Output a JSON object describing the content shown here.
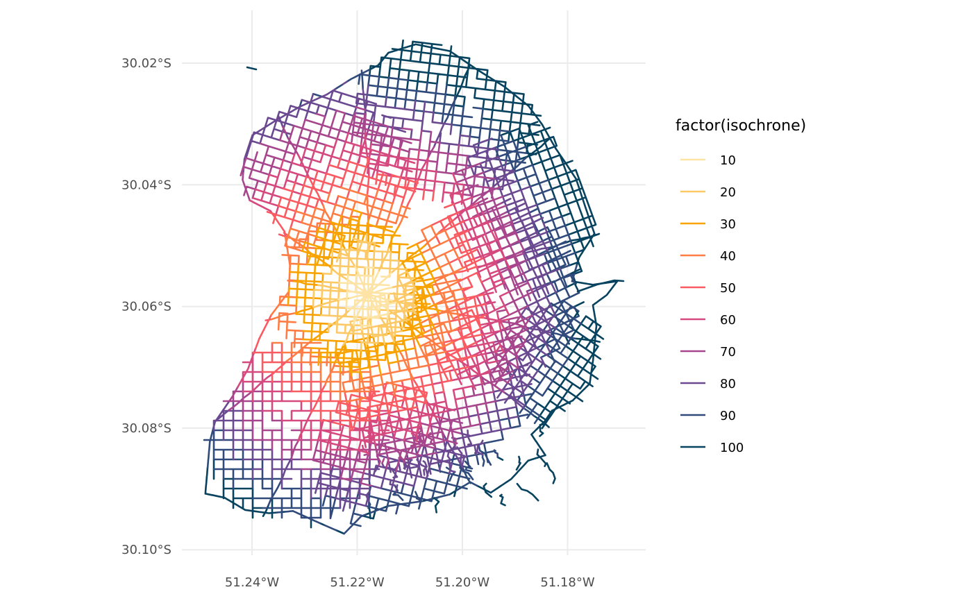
{
  "map": {
    "legend": {
      "title": "factor(isochrone)",
      "entries": [
        {
          "label": "10",
          "color": "#fde4a5"
        },
        {
          "label": "20",
          "color": "#fdc967"
        },
        {
          "label": "30",
          "color": "#f9a301"
        },
        {
          "label": "40",
          "color": "#ff7d45"
        },
        {
          "label": "50",
          "color": "#fa5a62"
        },
        {
          "label": "60",
          "color": "#d6497e"
        },
        {
          "label": "70",
          "color": "#a7468d"
        },
        {
          "label": "80",
          "color": "#6a4990"
        },
        {
          "label": "90",
          "color": "#304b7b"
        },
        {
          "label": "100",
          "color": "#07425e"
        }
      ]
    },
    "x_axis": {
      "ticks": [
        {
          "value": -51.24,
          "label": "51.24°W"
        },
        {
          "value": -51.22,
          "label": "51.22°W"
        },
        {
          "value": -51.2,
          "label": "51.20°W"
        },
        {
          "value": -51.18,
          "label": "51.18°W"
        }
      ]
    },
    "y_axis": {
      "ticks": [
        {
          "value": -30.02,
          "label": "30.02°S"
        },
        {
          "value": -30.04,
          "label": "30.04°S"
        },
        {
          "value": -30.06,
          "label": "30.06°S"
        },
        {
          "value": -30.08,
          "label": "30.08°S"
        },
        {
          "value": -30.1,
          "label": "30.10°S"
        }
      ]
    },
    "extent": {
      "lon": [
        -51.255,
        -51.165
      ],
      "lat": [
        -30.103,
        -30.013
      ]
    },
    "isochrone_center": {
      "lon": -51.218,
      "lat": -30.058
    },
    "grid": true
  }
}
